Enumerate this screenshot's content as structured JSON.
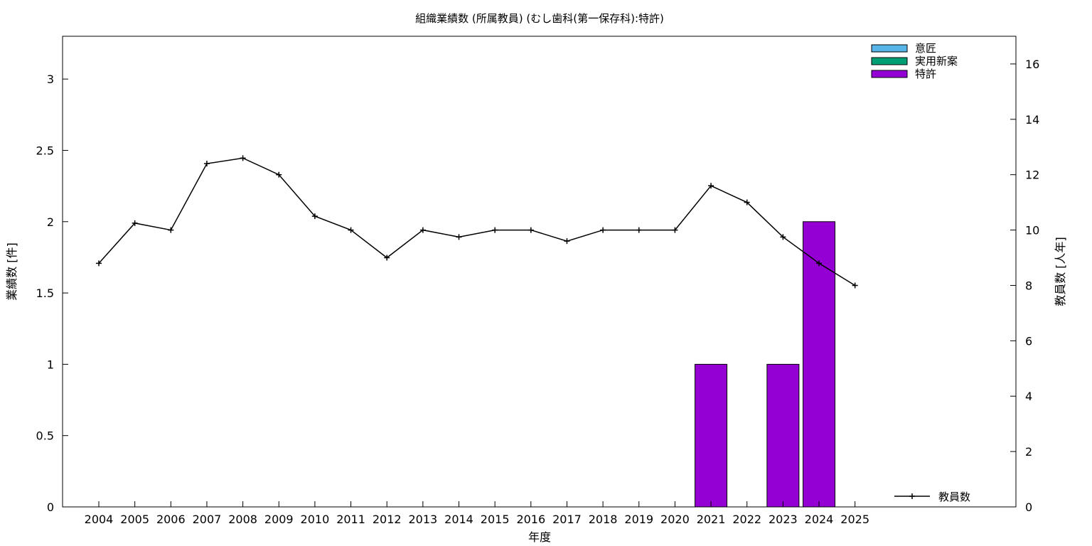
{
  "chart_data": {
    "type": "bar",
    "title": "組織業績数 (所属教員) (むし歯科(第一保存科):特許)",
    "xlabel": "年度",
    "ylabel": "業績数 [件]",
    "y2label": "教員数 [人年]",
    "categories": [
      "2004",
      "2005",
      "2006",
      "2007",
      "2008",
      "2009",
      "2010",
      "2011",
      "2012",
      "2013",
      "2014",
      "2015",
      "2016",
      "2017",
      "2018",
      "2019",
      "2020",
      "2021",
      "2022",
      "2023",
      "2024",
      "2025"
    ],
    "ylim": [
      0,
      3.3
    ],
    "y2lim": [
      0,
      17
    ],
    "yticks": [
      "0",
      "0.5",
      "1",
      "1.5",
      "2",
      "2.5",
      "3"
    ],
    "y2ticks": [
      "0",
      "2",
      "4",
      "6",
      "8",
      "10",
      "12",
      "14",
      "16"
    ],
    "grid": false,
    "legend_position": "top-right",
    "series": [
      {
        "name": "意匠",
        "kind": "bar",
        "color": "#56b4e9",
        "values": [
          0,
          0,
          0,
          0,
          0,
          0,
          0,
          0,
          0,
          0,
          0,
          0,
          0,
          0,
          0,
          0,
          0,
          0,
          0,
          0,
          0,
          0
        ]
      },
      {
        "name": "実用新案",
        "kind": "bar",
        "color": "#009e73",
        "values": [
          0,
          0,
          0,
          0,
          0,
          0,
          0,
          0,
          0,
          0,
          0,
          0,
          0,
          0,
          0,
          0,
          0,
          0,
          0,
          0,
          0,
          0
        ]
      },
      {
        "name": "特許",
        "kind": "bar",
        "color": "#9400d3",
        "values": [
          0,
          0,
          0,
          0,
          0,
          0,
          0,
          0,
          0,
          0,
          0,
          0,
          0,
          0,
          0,
          0,
          0,
          1,
          0,
          1,
          2,
          0
        ]
      }
    ],
    "line": {
      "name": "教員数",
      "axis": "y2",
      "color": "#000000",
      "values": [
        8.8,
        10.25,
        10.0,
        12.4,
        12.6,
        12.0,
        10.5,
        10.0,
        9.0,
        10.0,
        9.75,
        10.0,
        10.0,
        9.6,
        10.0,
        10.0,
        10.0,
        11.6,
        11.0,
        9.75,
        8.8,
        8.0
      ]
    }
  }
}
